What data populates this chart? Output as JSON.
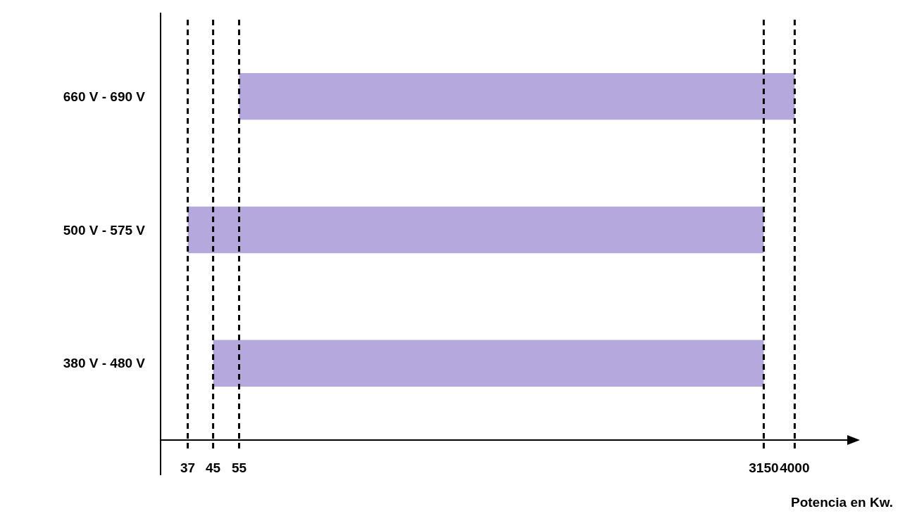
{
  "chart_data": {
    "type": "bar",
    "orientation": "horizontal",
    "categories": [
      "660 V - 690 V",
      "500 V - 575 V",
      "380 V - 480 V"
    ],
    "base": [
      55,
      37,
      45
    ],
    "values": [
      3945,
      3113,
      3105
    ],
    "color": "#b4a8dc",
    "log": "x",
    "xlim": [
      30,
      6000
    ],
    "xticks": [
      37,
      45,
      55,
      3150,
      4000
    ],
    "xlabel": "Potencia en Kw.",
    "ref_lines": [
      {
        "axis": "x",
        "value": 37,
        "color": "#000000",
        "line_style": "dashed"
      },
      {
        "axis": "x",
        "value": 45,
        "color": "#000000",
        "line_style": "dashed"
      },
      {
        "axis": "x",
        "value": 55,
        "color": "#000000",
        "line_style": "dashed"
      },
      {
        "axis": "x",
        "value": 3150,
        "color": "#000000",
        "line_style": "dashed"
      },
      {
        "axis": "x",
        "value": 4000,
        "color": "#000000",
        "line_style": "dashed"
      }
    ],
    "grid": false
  }
}
